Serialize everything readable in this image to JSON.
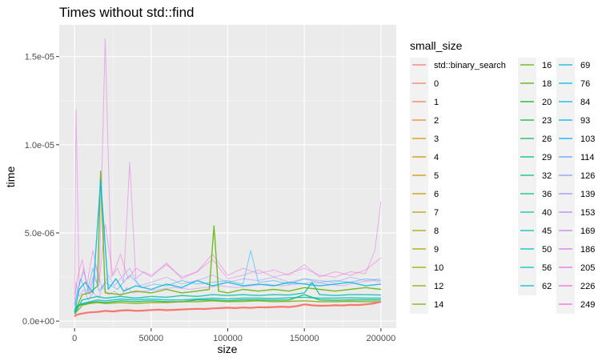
{
  "chart_data": {
    "type": "line",
    "title": "Times without std::find",
    "xlabel": "size",
    "ylabel": "time",
    "xlim": [
      -10000,
      210000
    ],
    "ylim": [
      -4e-07,
      1.68e-05
    ],
    "x_ticks": [
      0,
      50000,
      100000,
      150000,
      200000
    ],
    "x_tick_labels": [
      "0",
      "50000",
      "100000",
      "150000",
      "200000"
    ],
    "y_ticks": [
      0,
      5e-06,
      1e-05,
      1.5e-05
    ],
    "y_tick_labels": [
      "0.0e+00",
      "5.0e-06",
      "1.0e-05",
      "1.5e-05"
    ],
    "grid": true,
    "legend": {
      "title": "small_size",
      "placement": "right",
      "entries": [
        "std::binary_search",
        "0",
        "1",
        "2",
        "3",
        "4",
        "5",
        "6",
        "7",
        "8",
        "9",
        "10",
        "12",
        "14",
        "16",
        "18",
        "20",
        "23",
        "26",
        "29",
        "32",
        "36",
        "40",
        "45",
        "50",
        "56",
        "62",
        "69",
        "76",
        "84",
        "93",
        "103",
        "114",
        "126",
        "139",
        "153",
        "169",
        "186",
        "205",
        "226",
        "249"
      ],
      "colors": [
        "#F8766D",
        "#F37B59",
        "#ED8141",
        "#E7861B",
        "#E08B00",
        "#D89000",
        "#CF9400",
        "#C59900",
        "#BB9D00",
        "#B0A100",
        "#A3A500",
        "#95A900",
        "#86AC00",
        "#75AF00",
        "#5EB300",
        "#3DB600",
        "#00B81F",
        "#00BA42",
        "#00BC59",
        "#00BE6C",
        "#00BF7D",
        "#00C08D",
        "#00C19C",
        "#00C1AA",
        "#00C0B8",
        "#00BFC4",
        "#00BDD0",
        "#00BADB",
        "#00B7E5",
        "#00B2EE",
        "#00ADF7",
        "#00A7FF",
        "#619CFF",
        "#8B93FF",
        "#A58AFF",
        "#B983FF",
        "#CA7CF7",
        "#D874EE",
        "#E36EE5",
        "#ED68D9",
        "#F564E3"
      ]
    },
    "series": [
      {
        "name": "std::binary_search",
        "x": [
          0,
          1000,
          3000,
          6000,
          10000,
          15000,
          20000,
          25000,
          30000,
          35000,
          40000,
          45000,
          50000,
          55000,
          60000,
          65000,
          70000,
          75000,
          80000,
          85000,
          90000,
          95000,
          100000,
          105000,
          110000,
          115000,
          120000,
          125000,
          130000,
          135000,
          140000,
          145000,
          150000,
          155000,
          160000,
          165000,
          170000,
          175000,
          180000,
          185000,
          190000,
          195000,
          200000
        ],
        "values": [
          2.5e-07,
          3.5e-07,
          4e-07,
          4.5e-07,
          5e-07,
          5.2e-07,
          5.8e-07,
          5.5e-07,
          6e-07,
          6.2e-07,
          5.8e-07,
          6e-07,
          6.3e-07,
          6.5e-07,
          6.2e-07,
          6.4e-07,
          6.6e-07,
          6.8e-07,
          7e-07,
          6.9e-07,
          7.2e-07,
          7.4e-07,
          7.6e-07,
          7.4e-07,
          7.7e-07,
          7.5e-07,
          7.9e-07,
          7.8e-07,
          8e-07,
          8.2e-07,
          8e-07,
          8.5e-07,
          9.5e-07,
          9e-07,
          8.7e-07,
          8.8e-07,
          9e-07,
          8.9e-07,
          9.2e-07,
          9.1e-07,
          9.5e-07,
          1e-06,
          1.1e-06
        ]
      },
      {
        "name": "62",
        "x": [
          0,
          2000,
          5000,
          10000,
          15000,
          20000,
          25000,
          30000,
          40000,
          50000,
          60000,
          70000,
          80000,
          90000,
          100000,
          110000,
          120000,
          130000,
          140000,
          150000,
          160000,
          170000,
          180000,
          190000,
          200000
        ],
        "values": [
          6e-07,
          9e-07,
          1e-06,
          1.1e-06,
          1.2e-06,
          1.15e-06,
          1.2e-06,
          1.25e-06,
          1.2e-06,
          1.25e-06,
          1.2e-06,
          1.2e-06,
          1.25e-06,
          1.3e-06,
          1.25e-06,
          1.3e-06,
          1.3e-06,
          1.28e-06,
          1.32e-06,
          1.35e-06,
          1.3e-06,
          1.3e-06,
          1.32e-06,
          1.3e-06,
          1.3e-06
        ]
      },
      {
        "name": "26",
        "x": [
          0,
          2000,
          5000,
          10000,
          15000,
          20000,
          25000,
          30000,
          40000,
          50000,
          60000,
          70000,
          80000,
          90000,
          100000,
          110000,
          120000,
          130000,
          140000,
          150000,
          160000,
          170000,
          180000,
          190000,
          200000
        ],
        "values": [
          5e-07,
          8.5e-07,
          9.5e-07,
          1.05e-06,
          1.1e-06,
          1.05e-06,
          1.1e-06,
          1.15e-06,
          1.1e-06,
          1.15e-06,
          1.1e-06,
          1.1e-06,
          1.2e-06,
          1.2e-06,
          1.15e-06,
          1.2e-06,
          1.2e-06,
          1.18e-06,
          1.2e-06,
          1.5e-06,
          1.2e-06,
          1.18e-06,
          1.2e-06,
          1.2e-06,
          1.2e-06
        ]
      },
      {
        "name": "12",
        "x": [
          0,
          5000,
          10000,
          15000,
          20000,
          30000,
          40000,
          50000,
          60000,
          70000,
          80000,
          90000,
          100000,
          110000,
          120000,
          130000,
          140000,
          150000,
          160000,
          170000,
          180000,
          190000,
          200000
        ],
        "values": [
          4e-07,
          9e-07,
          1e-06,
          1.05e-06,
          1e-06,
          1.05e-06,
          1e-06,
          1.05e-06,
          1.05e-06,
          1.1e-06,
          1.1e-06,
          1.15e-06,
          1.1e-06,
          1.12e-06,
          1.15e-06,
          1.1e-06,
          1.12e-06,
          1.15e-06,
          1.1e-06,
          1.1e-06,
          1.12e-06,
          1.1e-06,
          1.1e-06
        ]
      },
      {
        "name": "169",
        "x": [
          0,
          1000,
          3000,
          6000,
          9000,
          12000,
          16000,
          18000,
          22000,
          26000,
          30000,
          34000,
          38000,
          45000,
          55000,
          65000,
          75000,
          85000,
          95000,
          105000,
          115000,
          125000,
          135000,
          145000,
          155000,
          165000,
          175000,
          185000,
          195000,
          200000
        ],
        "values": [
          1e-06,
          2.2e-06,
          1.4e-06,
          1.8e-06,
          1.2e-06,
          1.6e-06,
          1.3e-06,
          2e-06,
          1.5e-06,
          1.7e-06,
          1.4e-06,
          1.9e-06,
          1.6e-06,
          1.7e-06,
          1.8e-06,
          1.9e-06,
          1.8e-06,
          1.9e-06,
          2e-06,
          1.9e-06,
          2e-06,
          2.1e-06,
          2e-06,
          2.1e-06,
          2.2e-06,
          2.1e-06,
          2e-06,
          2.2e-06,
          2.3e-06,
          2.2e-06
        ]
      },
      {
        "name": "205",
        "x": [
          0,
          1000,
          3000,
          6000,
          9000,
          12000,
          16000,
          20000,
          24000,
          28000,
          32000,
          36000,
          40000,
          45000,
          50000,
          60000,
          70000,
          80000,
          90000,
          100000,
          110000,
          120000,
          130000,
          140000,
          150000,
          160000,
          170000,
          180000,
          190000,
          196000,
          200000
        ],
        "values": [
          1.5e-06,
          1.2e-05,
          2e-06,
          3e-06,
          1.6e-06,
          2.5e-06,
          2e-06,
          1.6e-05,
          2.5e-06,
          3e-06,
          2.2e-06,
          9e-06,
          2.4e-06,
          2.8e-06,
          2.6e-06,
          3.2e-06,
          2.5e-06,
          2.8e-06,
          3.5e-06,
          2.4e-06,
          2.6e-06,
          2.9e-06,
          2.5e-06,
          2.7e-06,
          3e-06,
          2.6e-06,
          2.5e-06,
          2.8e-06,
          2.7e-06,
          4e-06,
          6.8e-06
        ]
      },
      {
        "name": "226",
        "x": [
          0,
          2000,
          5000,
          8000,
          12000,
          16000,
          20000,
          25000,
          30000,
          35000,
          40000,
          50000,
          60000,
          70000,
          80000,
          90000,
          100000,
          110000,
          120000,
          130000,
          140000,
          150000,
          160000,
          170000,
          180000,
          190000,
          200000
        ],
        "values": [
          1.2e-06,
          2.5e-06,
          3.5e-06,
          2e-06,
          4e-06,
          2.2e-06,
          5.5e-06,
          2.6e-06,
          3.8e-06,
          2.4e-06,
          3e-06,
          2.5e-06,
          3.3e-06,
          2.4e-06,
          2.8e-06,
          3.8e-06,
          2.6e-06,
          3e-06,
          2.7e-06,
          2.9e-06,
          2.6e-06,
          3.2e-06,
          2.5e-06,
          2.8e-06,
          2.6e-06,
          2.9e-06,
          3.6e-06
        ]
      },
      {
        "name": "16",
        "x": [
          0,
          5000,
          10000,
          15000,
          17000,
          20000,
          30000,
          40000,
          50000,
          60000,
          70000,
          80000,
          88000,
          91000,
          94000,
          100000,
          110000,
          120000,
          130000,
          140000,
          150000,
          160000,
          170000,
          180000,
          190000,
          200000
        ],
        "values": [
          5e-07,
          1.5e-06,
          1.6e-06,
          2e-06,
          8.5e-06,
          1.6e-06,
          1.5e-06,
          1.7e-06,
          1.6e-06,
          1.8e-06,
          1.6e-06,
          1.7e-06,
          1.8e-06,
          5.4e-06,
          1.7e-06,
          1.6e-06,
          1.8e-06,
          1.7e-06,
          1.8e-06,
          1.7e-06,
          1.9e-06,
          1.8e-06,
          1.7e-06,
          1.8e-06,
          1.9e-06,
          1.8e-06
        ]
      },
      {
        "name": "76",
        "x": [
          0,
          3000,
          7000,
          12000,
          17000,
          22000,
          27000,
          32000,
          40000,
          50000,
          60000,
          70000,
          80000,
          90000,
          100000,
          110000,
          120000,
          130000,
          140000,
          150000,
          160000,
          170000,
          180000,
          190000,
          200000
        ],
        "values": [
          5e-07,
          1.8e-06,
          2.2e-06,
          1.6e-06,
          8e-06,
          1.8e-06,
          2.4e-06,
          1.7e-06,
          2e-06,
          1.8e-06,
          2.1e-06,
          1.9e-06,
          2.3e-06,
          2e-06,
          2.2e-06,
          2e-06,
          2.1e-06,
          2e-06,
          2.2e-06,
          2.1e-06,
          2e-06,
          2.1e-06,
          2.2e-06,
          2e-06,
          2.1e-06
        ]
      },
      {
        "name": "139",
        "x": [
          0,
          2000,
          6000,
          10000,
          14000,
          18000,
          22000,
          26000,
          30000,
          36000,
          42000,
          50000,
          60000,
          70000,
          80000,
          90000,
          100000,
          110000,
          120000,
          130000,
          140000,
          150000,
          160000,
          170000,
          180000,
          190000,
          200000
        ],
        "values": [
          8e-07,
          1.8e-06,
          2.8e-06,
          1.5e-06,
          3.2e-06,
          1.8e-06,
          2.6e-06,
          2e-06,
          2.4e-06,
          3e-06,
          2e-06,
          2.2e-06,
          2.5e-06,
          2.1e-06,
          2.3e-06,
          2.6e-06,
          2.2e-06,
          2.4e-06,
          2.3e-06,
          2.5e-06,
          2.2e-06,
          2.4e-06,
          2.3e-06,
          2.2e-06,
          2.5e-06,
          2.3e-06,
          2.4e-06
        ]
      },
      {
        "name": "45",
        "x": [
          0,
          5000,
          10000,
          15000,
          20000,
          30000,
          40000,
          50000,
          60000,
          70000,
          80000,
          90000,
          100000,
          110000,
          120000,
          130000,
          140000,
          150000,
          155000,
          160000,
          170000,
          180000,
          190000,
          200000
        ],
        "values": [
          4e-07,
          1.2e-06,
          1.3e-06,
          1.4e-06,
          1.3e-06,
          1.4e-06,
          1.3e-06,
          1.4e-06,
          1.35e-06,
          1.45e-06,
          1.4e-06,
          1.5e-06,
          1.45e-06,
          1.5e-06,
          1.45e-06,
          1.5e-06,
          1.48e-06,
          1.6e-06,
          2.2e-06,
          1.5e-06,
          1.45e-06,
          1.5e-06,
          1.5e-06,
          1.48e-06
        ]
      },
      {
        "name": "93",
        "x": [
          0,
          4000,
          8000,
          12000,
          16000,
          20000,
          28000,
          36000,
          44000,
          52000,
          60000,
          70000,
          80000,
          90000,
          100000,
          110000,
          115000,
          120000,
          130000,
          140000,
          150000,
          160000,
          170000,
          180000,
          190000,
          200000
        ],
        "values": [
          9e-07,
          2.4e-06,
          1.6e-06,
          3e-06,
          1.7e-06,
          2.2e-06,
          1.8e-06,
          2.6e-06,
          1.9e-06,
          2.1e-06,
          2e-06,
          2.3e-06,
          2.1e-06,
          2.2e-06,
          2.3e-06,
          2.1e-06,
          4e-06,
          2.2e-06,
          2.3e-06,
          2.1e-06,
          2.4e-06,
          2.2e-06,
          2.3e-06,
          2.2e-06,
          2.4e-06,
          2.3e-06
        ]
      }
    ]
  }
}
